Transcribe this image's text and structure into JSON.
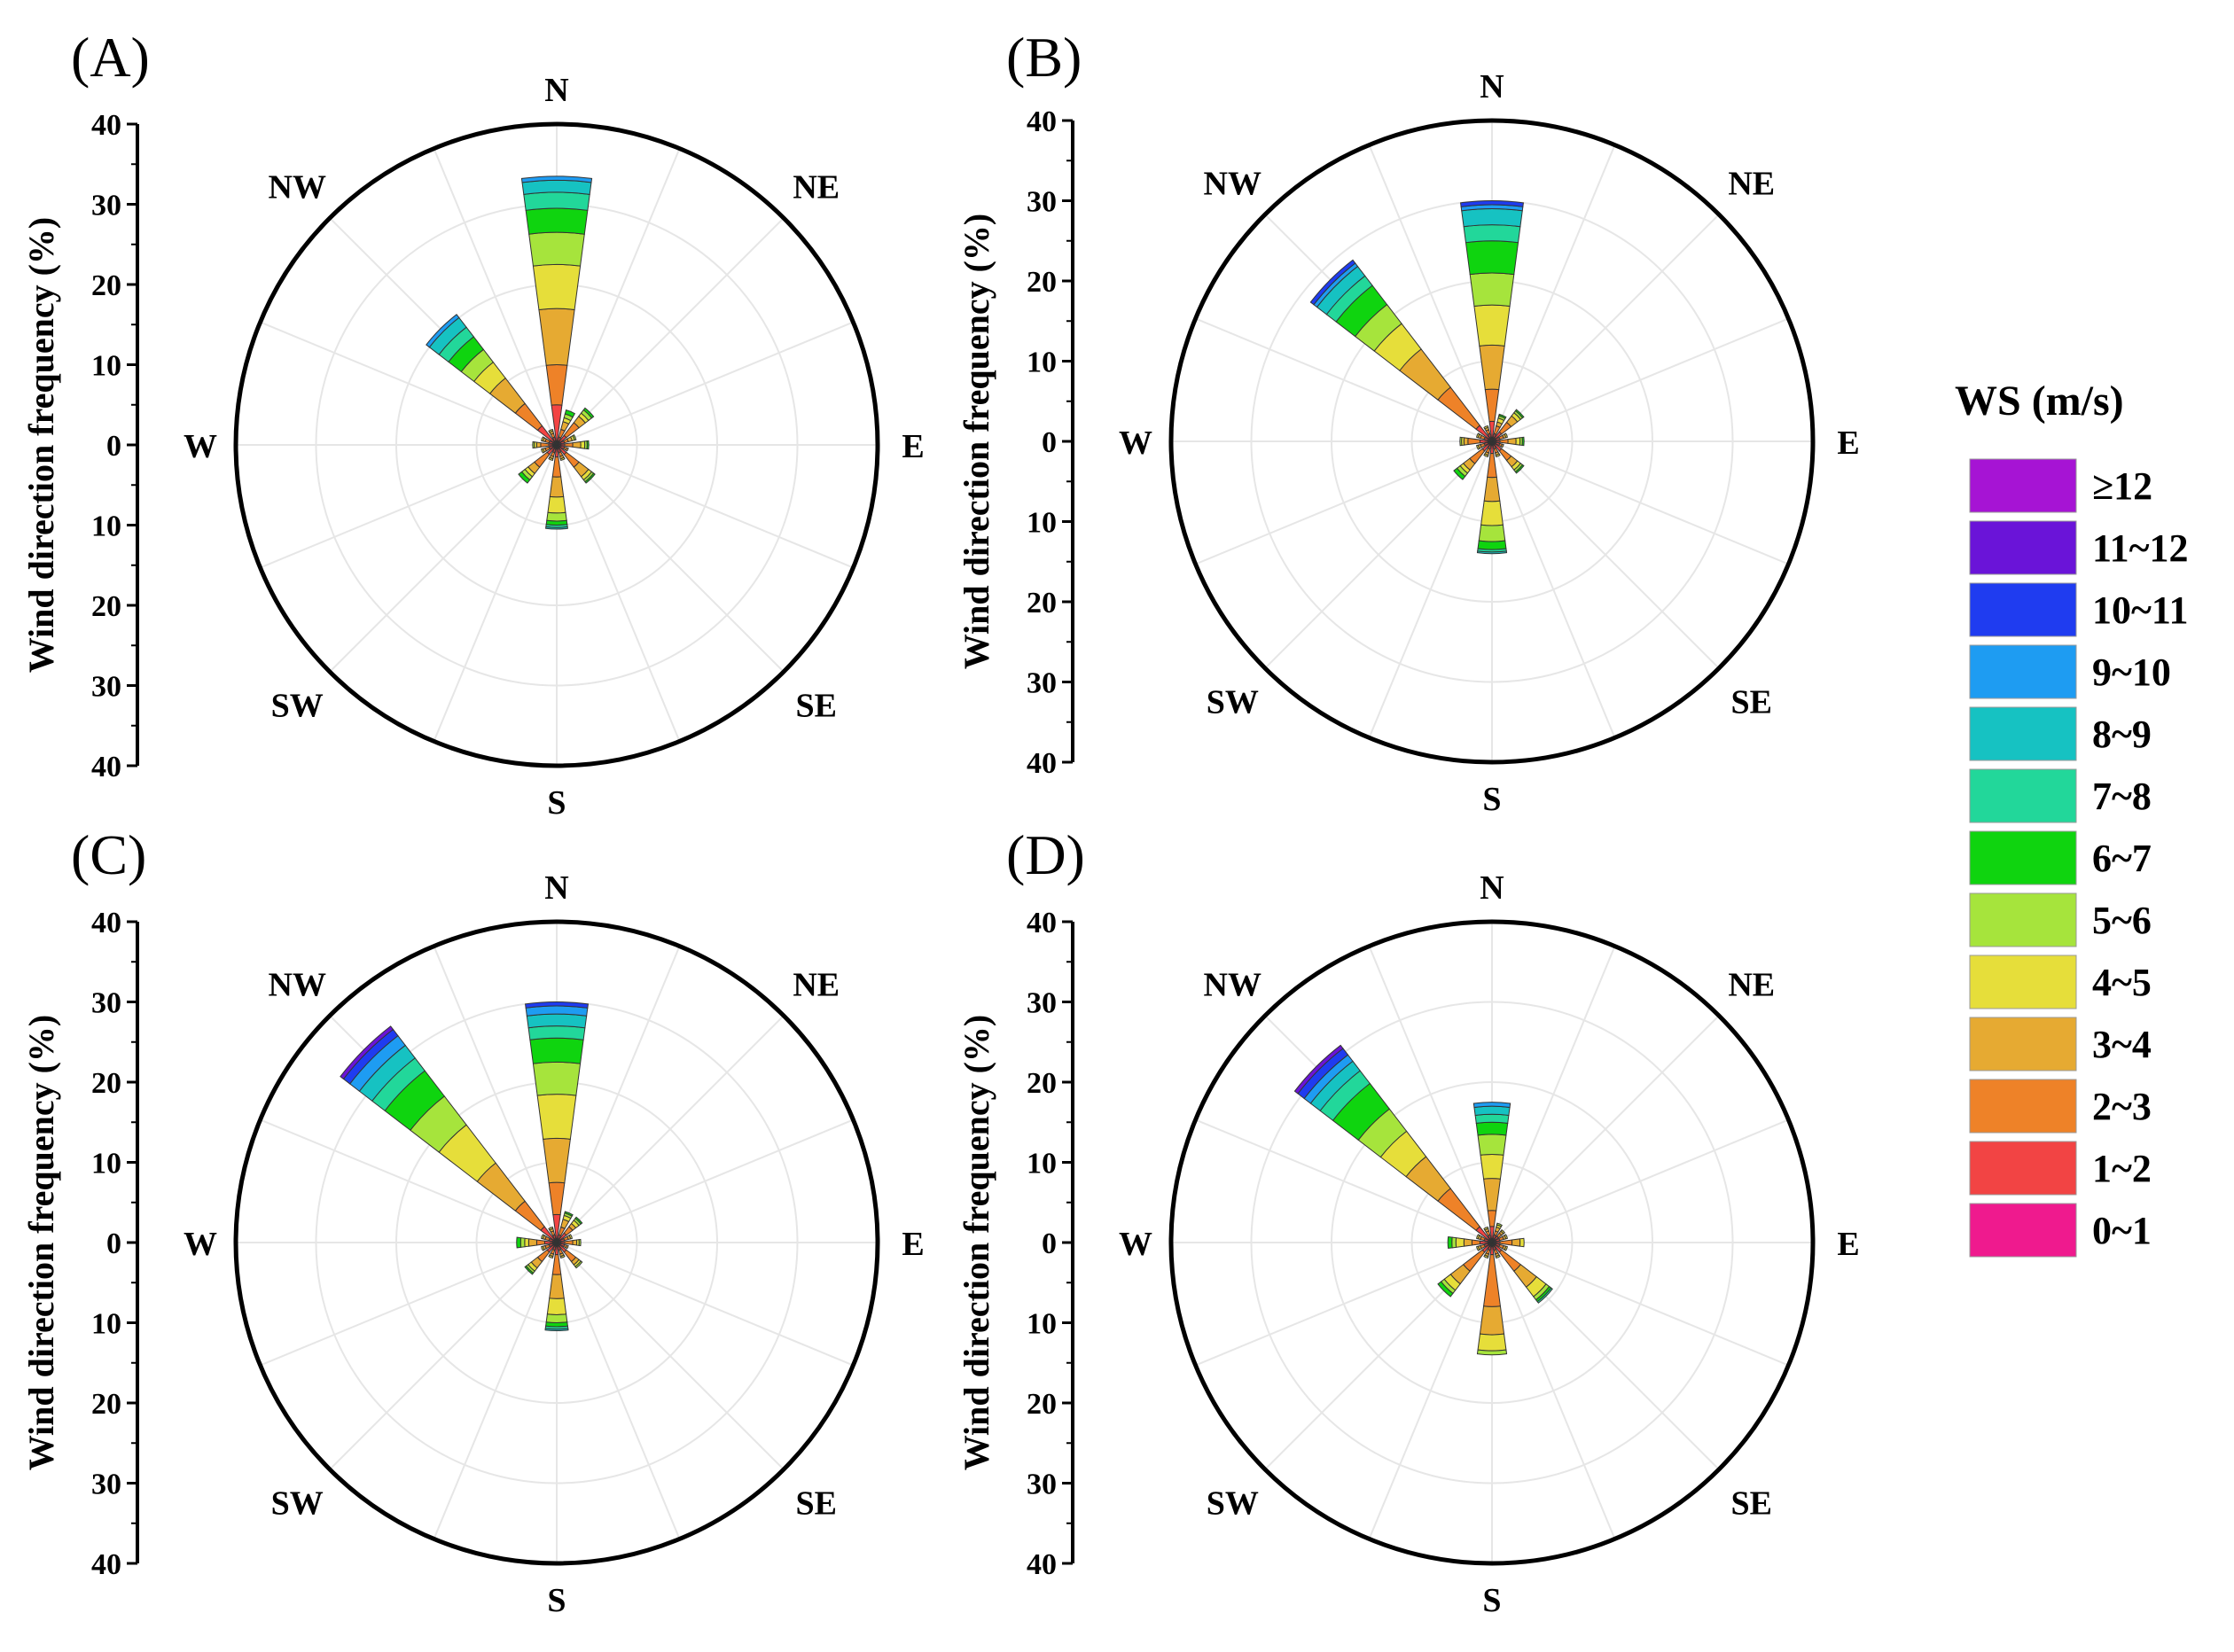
{
  "panel_labels": [
    "(A)",
    "(B)",
    "(C)",
    "(D)"
  ],
  "legend": {
    "title": "WS (m/s)",
    "items": [
      "≥12",
      "11~12",
      "10~11",
      "9~10",
      "8~9",
      "7~8",
      "6~7",
      "5~6",
      "4~5",
      "3~4",
      "2~3",
      "1~2",
      "0~1"
    ],
    "colors": [
      "#a614d4",
      "#6a14d8",
      "#1f3cf0",
      "#1e9cf2",
      "#16c2c2",
      "#22d79a",
      "#0fd40f",
      "#a6e43c",
      "#e6de3a",
      "#e6aa32",
      "#ee8228",
      "#f24444",
      "#ef1a8e"
    ]
  },
  "chart_data": [
    {
      "type": "windrose",
      "panel": "(A)",
      "ylabel": "Wind direction frequency (%)",
      "ylim": [
        0,
        40
      ],
      "yticks": [
        "40",
        "30",
        "20",
        "10",
        "0",
        "10",
        "20",
        "30",
        "40"
      ],
      "directions": [
        "N",
        "NE",
        "E",
        "SE",
        "S",
        "SW",
        "W",
        "NW"
      ],
      "sector_angles_deg": [
        0,
        22.5,
        45,
        67.5,
        90,
        112.5,
        135,
        157.5,
        180,
        202.5,
        225,
        247.5,
        270,
        292.5,
        315,
        337.5
      ],
      "bins": [
        "0~1",
        "1~2",
        "2~3",
        "3~4",
        "4~5",
        "5~6",
        "6~7",
        "7~8",
        "8~9",
        "9~10",
        "10~11",
        "11~12",
        "≥12"
      ],
      "sectors": [
        [
          0.5,
          4.5,
          5,
          7,
          5.5,
          4,
          3,
          2,
          1.5,
          0.5,
          0,
          0,
          0
        ],
        [
          0.5,
          0.5,
          1,
          1,
          0.5,
          0.5,
          0.5,
          0,
          0,
          0,
          0,
          0,
          0
        ],
        [
          0.5,
          1,
          2,
          1,
          0.5,
          0.5,
          0.3,
          0,
          0,
          0,
          0,
          0,
          0
        ],
        [
          0.5,
          0.5,
          0.5,
          0.5,
          0.3,
          0.2,
          0,
          0,
          0,
          0,
          0,
          0,
          0
        ],
        [
          0.5,
          0.5,
          1,
          1,
          0.5,
          0.3,
          0.2,
          0,
          0,
          0,
          0,
          0,
          0
        ],
        [
          0.5,
          0.5,
          0.3,
          0.2,
          0,
          0,
          0,
          0,
          0,
          0,
          0,
          0,
          0
        ],
        [
          0.5,
          1,
          2,
          1.5,
          0.5,
          0.3,
          0.2,
          0,
          0,
          0,
          0,
          0,
          0
        ],
        [
          0.5,
          0.5,
          0.5,
          0.3,
          0.2,
          0,
          0,
          0,
          0,
          0,
          0,
          0,
          0
        ],
        [
          0.5,
          1,
          2.5,
          2.5,
          2,
          1,
          0.5,
          0.3,
          0.2,
          0,
          0,
          0,
          0
        ],
        [
          0.5,
          0.5,
          0.5,
          0.3,
          0.2,
          0,
          0,
          0,
          0,
          0,
          0,
          0,
          0
        ],
        [
          0.5,
          1,
          2,
          1,
          0.5,
          0.5,
          0.5,
          0,
          0,
          0,
          0,
          0,
          0
        ],
        [
          0.5,
          0.5,
          0.5,
          0.3,
          0.2,
          0,
          0,
          0,
          0,
          0,
          0,
          0,
          0
        ],
        [
          0.5,
          0.5,
          1,
          0.5,
          0.3,
          0.2,
          0,
          0,
          0,
          0,
          0,
          0,
          0
        ],
        [
          0.5,
          0.5,
          0.5,
          0.3,
          0.2,
          0,
          0,
          0,
          0,
          0,
          0,
          0,
          0
        ],
        [
          0.5,
          2.5,
          3.5,
          4,
          2.5,
          2,
          2,
          1.5,
          1.5,
          0.5,
          0,
          0,
          0
        ],
        [
          0.5,
          0.5,
          0.5,
          0.3,
          0.2,
          0,
          0,
          0,
          0,
          0,
          0,
          0,
          0
        ]
      ]
    },
    {
      "type": "windrose",
      "panel": "(B)",
      "ylabel": "Wind direction frequency (%)",
      "ylim": [
        0,
        40
      ],
      "yticks": [
        "40",
        "30",
        "20",
        "10",
        "0",
        "10",
        "20",
        "30",
        "40"
      ],
      "directions": [
        "N",
        "NE",
        "E",
        "SE",
        "S",
        "SW",
        "W",
        "NW"
      ],
      "sector_angles_deg": [
        0,
        22.5,
        45,
        67.5,
        90,
        112.5,
        135,
        157.5,
        180,
        202.5,
        225,
        247.5,
        270,
        292.5,
        315,
        337.5
      ],
      "bins": [
        "0~1",
        "1~2",
        "2~3",
        "3~4",
        "4~5",
        "5~6",
        "6~7",
        "7~8",
        "8~9",
        "9~10",
        "10~11",
        "11~12",
        "≥12"
      ],
      "sectors": [
        [
          0.5,
          2,
          4,
          5.5,
          5,
          4,
          4,
          2,
          2,
          0.5,
          0.5,
          0,
          0
        ],
        [
          0.5,
          0.5,
          1,
          0.5,
          0.5,
          0.3,
          0.2,
          0,
          0,
          0,
          0,
          0,
          0
        ],
        [
          0.5,
          1,
          1.5,
          1,
          0.5,
          0.3,
          0.2,
          0,
          0,
          0,
          0,
          0,
          0
        ],
        [
          0.5,
          0.5,
          0.5,
          0.3,
          0.2,
          0,
          0,
          0,
          0,
          0,
          0,
          0,
          0
        ],
        [
          0.5,
          0.5,
          1,
          1,
          0.5,
          0.3,
          0.2,
          0,
          0,
          0,
          0,
          0,
          0
        ],
        [
          0.5,
          0.5,
          0.3,
          0.2,
          0,
          0,
          0,
          0,
          0,
          0,
          0,
          0,
          0
        ],
        [
          0.5,
          1,
          1.5,
          1,
          0.5,
          0.3,
          0.2,
          0,
          0,
          0,
          0,
          0,
          0
        ],
        [
          0.5,
          0.5,
          0.5,
          0.3,
          0.2,
          0,
          0,
          0,
          0,
          0,
          0,
          0,
          0
        ],
        [
          0.5,
          1,
          3,
          3,
          3,
          2,
          1,
          0.3,
          0.2,
          0,
          0,
          0,
          0
        ],
        [
          0.5,
          0.5,
          0.5,
          0.3,
          0.2,
          0,
          0,
          0,
          0,
          0,
          0,
          0,
          0
        ],
        [
          0.5,
          1,
          2,
          1,
          0.5,
          0.5,
          0.5,
          0,
          0,
          0,
          0,
          0,
          0
        ],
        [
          0.5,
          0.5,
          0.5,
          0.3,
          0.2,
          0,
          0,
          0,
          0,
          0,
          0,
          0,
          0
        ],
        [
          0.5,
          1,
          1.5,
          0.5,
          0.3,
          0.2,
          0,
          0,
          0,
          0,
          0,
          0,
          0
        ],
        [
          0.5,
          0.5,
          0.5,
          0.3,
          0.2,
          0,
          0,
          0,
          0,
          0,
          0,
          0,
          0
        ],
        [
          0.5,
          2,
          6,
          6,
          4,
          3,
          3,
          1.5,
          1.5,
          0.5,
          0.5,
          0,
          0
        ],
        [
          0.5,
          0.5,
          0.5,
          0.3,
          0.2,
          0,
          0,
          0,
          0,
          0,
          0,
          0,
          0
        ]
      ]
    },
    {
      "type": "windrose",
      "panel": "(C)",
      "ylabel": "Wind direction frequency (%)",
      "ylim": [
        0,
        40
      ],
      "yticks": [
        "40",
        "30",
        "20",
        "10",
        "0",
        "10",
        "20",
        "30",
        "40"
      ],
      "directions": [
        "N",
        "NE",
        "E",
        "SE",
        "S",
        "SW",
        "W",
        "NW"
      ],
      "sector_angles_deg": [
        0,
        22.5,
        45,
        67.5,
        90,
        112.5,
        135,
        157.5,
        180,
        202.5,
        225,
        247.5,
        270,
        292.5,
        315,
        337.5
      ],
      "bins": [
        "0~1",
        "1~2",
        "2~3",
        "3~4",
        "4~5",
        "5~6",
        "6~7",
        "7~8",
        "8~9",
        "9~10",
        "10~11",
        "11~12",
        "≥12"
      ],
      "sectors": [
        [
          0.5,
          3,
          4,
          5.5,
          5.5,
          4,
          3,
          1.5,
          1.5,
          1,
          0.5,
          0,
          0
        ],
        [
          0.5,
          0.5,
          1,
          1,
          0.5,
          0.3,
          0.2,
          0,
          0,
          0,
          0,
          0,
          0
        ],
        [
          0.5,
          1,
          1,
          0.5,
          0.5,
          0.3,
          0.2,
          0,
          0,
          0,
          0,
          0,
          0
        ],
        [
          0.5,
          0.5,
          0.5,
          0.3,
          0.2,
          0,
          0,
          0,
          0,
          0,
          0,
          0,
          0
        ],
        [
          0.5,
          0.5,
          1,
          0.5,
          0.3,
          0.2,
          0,
          0,
          0,
          0,
          0,
          0,
          0
        ],
        [
          0.5,
          0.5,
          0.3,
          0.2,
          0,
          0,
          0,
          0,
          0,
          0,
          0,
          0,
          0
        ],
        [
          0.5,
          1,
          1.5,
          0.5,
          0.3,
          0.2,
          0,
          0,
          0,
          0,
          0,
          0,
          0
        ],
        [
          0.5,
          0.5,
          0.5,
          0.3,
          0.2,
          0,
          0,
          0,
          0,
          0,
          0,
          0,
          0
        ],
        [
          0.5,
          1,
          2.5,
          3,
          2,
          1,
          0.5,
          0.3,
          0.2,
          0,
          0,
          0,
          0
        ],
        [
          0.5,
          0.5,
          0.5,
          0.3,
          0.2,
          0,
          0,
          0,
          0,
          0,
          0,
          0,
          0
        ],
        [
          0.5,
          1,
          1.5,
          1,
          0.5,
          0.3,
          0.2,
          0,
          0,
          0,
          0,
          0,
          0
        ],
        [
          0.5,
          0.5,
          0.5,
          0.3,
          0.2,
          0,
          0,
          0,
          0,
          0,
          0,
          0,
          0
        ],
        [
          0.5,
          1,
          1,
          1,
          0.5,
          0.5,
          0.5,
          0,
          0,
          0,
          0,
          0,
          0
        ],
        [
          0.5,
          0.5,
          0.5,
          0.3,
          0.2,
          0,
          0,
          0,
          0,
          0,
          0,
          0,
          0
        ],
        [
          0.5,
          2,
          4,
          6,
          6,
          4.5,
          4,
          2,
          2,
          1.5,
          1,
          0.5,
          0
        ],
        [
          0.5,
          0.5,
          0.5,
          0.3,
          0.2,
          0,
          0,
          0,
          0,
          0,
          0,
          0,
          0
        ]
      ]
    },
    {
      "type": "windrose",
      "panel": "(D)",
      "ylabel": "Wind direction frequency (%)",
      "ylim": [
        0,
        40
      ],
      "yticks": [
        "40",
        "30",
        "20",
        "10",
        "0",
        "10",
        "20",
        "30",
        "40"
      ],
      "directions": [
        "N",
        "NE",
        "E",
        "SE",
        "S",
        "SW",
        "W",
        "NW"
      ],
      "sector_angles_deg": [
        0,
        22.5,
        45,
        67.5,
        90,
        112.5,
        135,
        157.5,
        180,
        202.5,
        225,
        247.5,
        270,
        292.5,
        315,
        337.5
      ],
      "bins": [
        "0~1",
        "1~2",
        "2~3",
        "3~4",
        "4~5",
        "5~6",
        "6~7",
        "7~8",
        "8~9",
        "9~10",
        "10~11",
        "11~12",
        "≥12"
      ],
      "sectors": [
        [
          0.5,
          1.5,
          2,
          4,
          3,
          2.5,
          1.5,
          1,
          1,
          0.5,
          0,
          0,
          0
        ],
        [
          0.5,
          0.5,
          0.5,
          0.5,
          0.3,
          0.2,
          0,
          0,
          0,
          0,
          0,
          0,
          0
        ],
        [
          0.5,
          0.5,
          0.5,
          0.3,
          0.2,
          0,
          0,
          0,
          0,
          0,
          0,
          0,
          0
        ],
        [
          0.5,
          0.5,
          0.5,
          0.3,
          0.2,
          0,
          0,
          0,
          0,
          0,
          0,
          0,
          0
        ],
        [
          0.5,
          0.5,
          1.5,
          1,
          0.5,
          0,
          0,
          0,
          0,
          0,
          0,
          0,
          0
        ],
        [
          0.5,
          0.5,
          0.5,
          0.3,
          0.2,
          0,
          0,
          0,
          0,
          0,
          0,
          0,
          0
        ],
        [
          0.5,
          1,
          3,
          2.5,
          1.5,
          0.5,
          0.3,
          0.2,
          0,
          0,
          0,
          0,
          0
        ],
        [
          0.5,
          0.5,
          0.5,
          0.3,
          0.2,
          0,
          0,
          0,
          0,
          0,
          0,
          0,
          0
        ],
        [
          0.5,
          1,
          6.5,
          3.5,
          2,
          0.5,
          0,
          0,
          0,
          0,
          0,
          0,
          0
        ],
        [
          0.5,
          0.5,
          0.5,
          0.3,
          0.2,
          0,
          0,
          0,
          0,
          0,
          0,
          0,
          0
        ],
        [
          0.5,
          1,
          3,
          2,
          1,
          0.5,
          0.5,
          0,
          0,
          0,
          0,
          0,
          0
        ],
        [
          0.5,
          0.5,
          0.5,
          0.3,
          0.2,
          0,
          0,
          0,
          0,
          0,
          0,
          0,
          0
        ],
        [
          0.5,
          1,
          1,
          1,
          1,
          0.5,
          0.5,
          0,
          0,
          0,
          0,
          0,
          0
        ],
        [
          0.5,
          0.5,
          0.5,
          0.3,
          0.2,
          0,
          0,
          0,
          0,
          0,
          0,
          0,
          0
        ],
        [
          0.5,
          2,
          6,
          5,
          4,
          3.5,
          4,
          2,
          1.5,
          1,
          1,
          0.5,
          0
        ],
        [
          0.5,
          0.5,
          0.5,
          0.3,
          0.2,
          0,
          0,
          0,
          0,
          0,
          0,
          0,
          0
        ]
      ]
    }
  ]
}
